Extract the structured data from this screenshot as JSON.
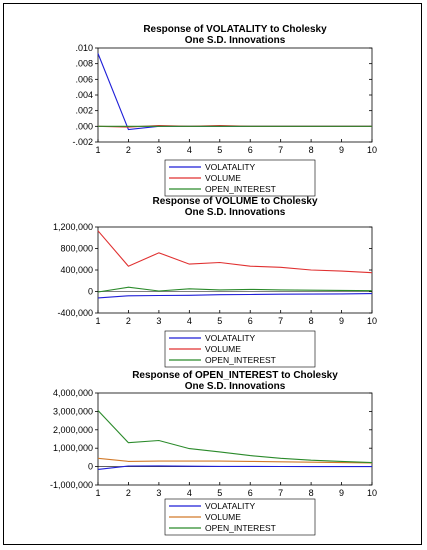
{
  "colors": {
    "volatility": "#1f1fd8",
    "volume": "#e03030",
    "open_interest": "#2a8a2a"
  },
  "chart_data": [
    {
      "type": "line",
      "title": "Response of VOLATALITY to Cholesky",
      "subtitle": "One S.D. Innovations",
      "x": [
        1,
        2,
        3,
        4,
        5,
        6,
        7,
        8,
        9,
        10
      ],
      "xticks": [
        "1",
        "2",
        "3",
        "4",
        "5",
        "6",
        "7",
        "8",
        "9",
        "10"
      ],
      "ylim": [
        -0.002,
        0.01
      ],
      "yticks": [
        -0.002,
        0.0,
        0.002,
        0.004,
        0.006,
        0.008,
        0.01
      ],
      "ytick_labels": [
        "-.002",
        ".000",
        ".002",
        ".004",
        ".006",
        ".008",
        ".010"
      ],
      "series": [
        {
          "name": "VOLATALITY",
          "color": "#1f1fd8",
          "values": [
            0.0093,
            -0.0004,
            0.0,
            0.0,
            0.0,
            0.0,
            0.0,
            0.0,
            0.0,
            0.0
          ]
        },
        {
          "name": "VOLUME",
          "color": "#e03030",
          "values": [
            0.0,
            -0.0001,
            0.0001,
            0.0,
            0.0001,
            0.0,
            0.0,
            0.0,
            0.0,
            0.0
          ]
        },
        {
          "name": "OPEN_INTEREST",
          "color": "#2a8a2a",
          "values": [
            0.0,
            0.0,
            0.0,
            0.0,
            0.0,
            0.0,
            0.0,
            0.0,
            0.0,
            0.0
          ]
        }
      ],
      "legend": "bottom-center"
    },
    {
      "type": "line",
      "title": "Response of VOLUME to Cholesky",
      "subtitle": "One S.D. Innovations",
      "x": [
        1,
        2,
        3,
        4,
        5,
        6,
        7,
        8,
        9,
        10
      ],
      "xticks": [
        "1",
        "2",
        "3",
        "4",
        "5",
        "6",
        "7",
        "8",
        "9",
        "10"
      ],
      "ylim": [
        -400000,
        1200000
      ],
      "yticks": [
        -400000,
        0,
        400000,
        800000,
        1200000
      ],
      "ytick_labels": [
        "-400,000",
        "0",
        "400,000",
        "800,000",
        "1,200,000"
      ],
      "series": [
        {
          "name": "VOLATALITY",
          "color": "#1f1fd8",
          "values": [
            -120000,
            -80000,
            -75000,
            -70000,
            -60000,
            -55000,
            -50000,
            -48000,
            -45000,
            -40000
          ]
        },
        {
          "name": "VOLUME",
          "color": "#e03030",
          "values": [
            1130000,
            470000,
            720000,
            510000,
            540000,
            470000,
            450000,
            400000,
            380000,
            350000
          ]
        },
        {
          "name": "OPEN_INTEREST",
          "color": "#2a8a2a",
          "values": [
            -10000,
            80000,
            10000,
            50000,
            30000,
            40000,
            30000,
            25000,
            20000,
            15000
          ]
        }
      ],
      "legend": "bottom-center"
    },
    {
      "type": "line",
      "title": "Response of OPEN_INTEREST to Cholesky",
      "subtitle": "One S.D. Innovations",
      "x": [
        1,
        2,
        3,
        4,
        5,
        6,
        7,
        8,
        9,
        10
      ],
      "xticks": [
        "1",
        "2",
        "3",
        "4",
        "5",
        "6",
        "7",
        "8",
        "9",
        "10"
      ],
      "ylim": [
        -1000000,
        4000000
      ],
      "yticks": [
        -1000000,
        0,
        1000000,
        2000000,
        3000000,
        4000000
      ],
      "ytick_labels": [
        "-1,000,000",
        "0",
        "1,000,000",
        "2,000,000",
        "3,000,000",
        "4,000,000"
      ],
      "series": [
        {
          "name": "VOLATALITY",
          "color": "#1f1fd8",
          "values": [
            -150000,
            30000,
            40000,
            20000,
            10000,
            10000,
            5000,
            0,
            0,
            0
          ]
        },
        {
          "name": "VOLUME",
          "color": "#d27a2a",
          "values": [
            450000,
            280000,
            300000,
            300000,
            300000,
            280000,
            260000,
            240000,
            220000,
            200000
          ]
        },
        {
          "name": "OPEN_INTEREST",
          "color": "#2a8a2a",
          "values": [
            3050000,
            1300000,
            1420000,
            980000,
            800000,
            600000,
            450000,
            350000,
            280000,
            220000
          ]
        }
      ],
      "legend": "bottom-center"
    }
  ]
}
